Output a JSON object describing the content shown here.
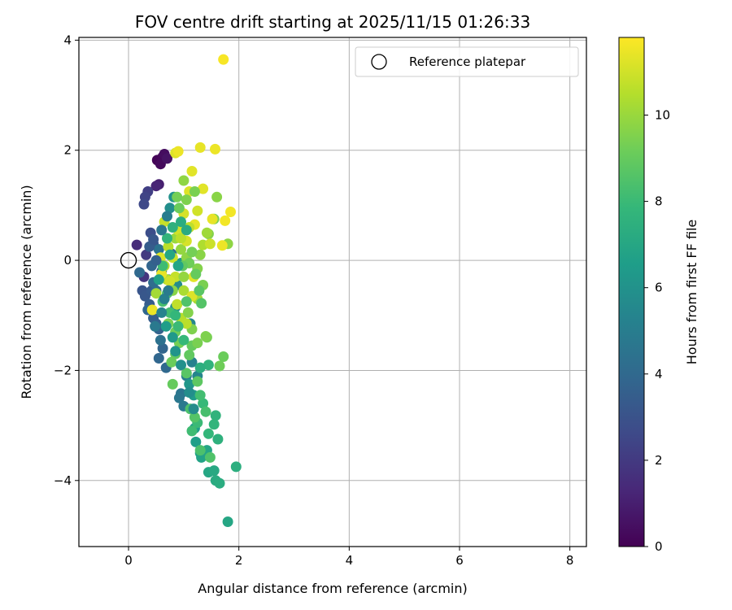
{
  "chart_data": {
    "type": "scatter",
    "title": "FOV centre drift starting at 2025/11/15 01:26:33",
    "xlabel": "Angular distance from reference (arcmin)",
    "ylabel": "Rotation from reference (arcmin)",
    "xlim": [
      -0.9,
      8.3
    ],
    "ylim": [
      -5.2,
      4.05
    ],
    "xticks": [
      0,
      2,
      4,
      6,
      8
    ],
    "xtick_labels": [
      "0",
      "2",
      "4",
      "6",
      "8"
    ],
    "yticks": [
      -4,
      -2,
      0,
      2,
      4
    ],
    "ytick_labels": [
      "−4",
      "−2",
      "0",
      "2",
      "4"
    ],
    "grid": true,
    "legend": {
      "label": "Reference platepar",
      "placement": "top-right"
    },
    "colorbar": {
      "label": "Hours from first FF file",
      "colormap": "viridis",
      "range": [
        0,
        11.8
      ],
      "ticks": [
        0,
        2,
        4,
        6,
        8,
        10
      ],
      "tick_labels": [
        "0",
        "2",
        "4",
        "6",
        "8",
        "10"
      ]
    },
    "reference": {
      "x": 0,
      "y": 0
    },
    "points": [
      [
        0.52,
        1.82,
        0.1
      ],
      [
        0.62,
        1.88,
        0.2
      ],
      [
        0.58,
        1.75,
        0.3
      ],
      [
        0.65,
        1.93,
        0.4
      ],
      [
        0.7,
        1.85,
        0.6
      ],
      [
        0.55,
        1.38,
        1.0
      ],
      [
        0.5,
        1.35,
        1.2
      ],
      [
        0.15,
        0.28,
        1.5
      ],
      [
        0.28,
        -0.3,
        1.8
      ],
      [
        0.32,
        0.1,
        2.0
      ],
      [
        0.35,
        1.25,
        2.2
      ],
      [
        0.3,
        1.15,
        2.4
      ],
      [
        0.28,
        1.02,
        2.6
      ],
      [
        0.4,
        0.5,
        2.8
      ],
      [
        0.45,
        0.3,
        3.0
      ],
      [
        0.25,
        -0.55,
        3.1
      ],
      [
        0.3,
        -0.65,
        3.2
      ],
      [
        0.42,
        -0.55,
        3.3
      ],
      [
        0.38,
        -0.8,
        3.4
      ],
      [
        0.45,
        -1.05,
        3.5
      ],
      [
        0.5,
        -1.15,
        3.6
      ],
      [
        0.55,
        -1.25,
        3.7
      ],
      [
        0.62,
        -1.6,
        3.8
      ],
      [
        0.55,
        -1.78,
        3.9
      ],
      [
        0.68,
        -1.95,
        4.0
      ],
      [
        0.5,
        -0.55,
        4.1
      ],
      [
        0.6,
        -0.2,
        4.2
      ],
      [
        0.72,
        -0.35,
        4.3
      ],
      [
        0.78,
        0.12,
        4.4
      ],
      [
        0.55,
        0.2,
        4.5
      ],
      [
        0.2,
        -0.22,
        4.0
      ],
      [
        0.35,
        -0.9,
        3.9
      ],
      [
        0.45,
        -0.4,
        4.2
      ],
      [
        0.95,
        -2.42,
        4.6
      ],
      [
        0.92,
        -2.5,
        4.7
      ],
      [
        1.0,
        -2.65,
        4.8
      ],
      [
        1.05,
        -2.1,
        5.0
      ],
      [
        1.15,
        -1.85,
        5.2
      ],
      [
        1.25,
        -2.1,
        5.4
      ],
      [
        1.12,
        -1.15,
        5.5
      ],
      [
        0.85,
        -0.85,
        5.6
      ],
      [
        0.88,
        -0.45,
        5.7
      ],
      [
        0.75,
        0.95,
        5.8
      ],
      [
        0.82,
        1.15,
        6.0
      ],
      [
        0.95,
        -0.05,
        6.1
      ],
      [
        1.1,
        -2.25,
        6.2
      ],
      [
        1.18,
        -2.45,
        6.4
      ],
      [
        1.2,
        -3.05,
        6.5
      ],
      [
        1.22,
        -3.3,
        6.6
      ],
      [
        1.3,
        -3.5,
        6.7
      ],
      [
        1.32,
        -3.58,
        6.8
      ],
      [
        1.42,
        -3.45,
        6.9
      ],
      [
        1.45,
        -3.85,
        7.0
      ],
      [
        1.55,
        -3.82,
        7.1
      ],
      [
        1.58,
        -4.0,
        7.2
      ],
      [
        1.65,
        -4.05,
        7.3
      ],
      [
        1.8,
        -4.75,
        7.0
      ],
      [
        1.95,
        -3.75,
        7.4
      ],
      [
        1.62,
        -3.25,
        7.5
      ],
      [
        1.58,
        -2.82,
        7.6
      ],
      [
        1.55,
        -2.98,
        7.7
      ],
      [
        1.45,
        -3.15,
        7.8
      ],
      [
        1.35,
        -2.6,
        7.9
      ],
      [
        1.25,
        -2.95,
        8.0
      ],
      [
        1.15,
        -3.1,
        8.1
      ],
      [
        1.3,
        -2.45,
        8.2
      ],
      [
        1.4,
        -2.75,
        8.3
      ],
      [
        1.3,
        -3.45,
        8.4
      ],
      [
        1.48,
        -3.58,
        8.5
      ],
      [
        1.12,
        -2.7,
        8.4
      ],
      [
        1.2,
        -2.85,
        8.6
      ],
      [
        1.05,
        -2.05,
        8.7
      ],
      [
        1.25,
        -2.2,
        8.8
      ],
      [
        1.1,
        -1.72,
        8.9
      ],
      [
        1.15,
        -1.55,
        9.0
      ],
      [
        0.85,
        -1.7,
        8.9
      ],
      [
        0.8,
        -2.25,
        9.0
      ],
      [
        0.78,
        -1.85,
        9.1
      ],
      [
        0.85,
        -1.3,
        9.2
      ],
      [
        0.92,
        -1.5,
        9.3
      ],
      [
        1.65,
        -1.92,
        9.2
      ],
      [
        1.72,
        -1.75,
        9.1
      ],
      [
        1.42,
        -1.4,
        9.3
      ],
      [
        1.25,
        -1.5,
        9.4
      ],
      [
        1.15,
        -1.25,
        9.5
      ],
      [
        1.35,
        -0.45,
        9.4
      ],
      [
        1.25,
        -0.15,
        9.6
      ],
      [
        1.3,
        0.1,
        9.7
      ],
      [
        1.05,
        0.05,
        9.8
      ],
      [
        0.95,
        0.2,
        9.9
      ],
      [
        0.85,
        0.4,
        10.0
      ],
      [
        1.45,
        0.48,
        9.6
      ],
      [
        1.55,
        0.75,
        9.5
      ],
      [
        1.8,
        0.3,
        9.8
      ],
      [
        1.6,
        1.15,
        9.7
      ],
      [
        1.42,
        0.5,
        10.1
      ],
      [
        1.25,
        -0.7,
        10.2
      ],
      [
        1.0,
        -0.55,
        10.3
      ],
      [
        0.7,
        -0.35,
        10.4
      ],
      [
        0.65,
        -0.1,
        10.5
      ],
      [
        0.72,
        0.25,
        10.6
      ],
      [
        0.88,
        -0.8,
        10.7
      ],
      [
        0.95,
        -1.05,
        10.5
      ],
      [
        1.05,
        -1.15,
        10.6
      ],
      [
        0.85,
        -0.3,
        10.8
      ],
      [
        0.8,
        0.05,
        10.9
      ],
      [
        0.9,
        0.55,
        11.0
      ],
      [
        1.0,
        0.85,
        11.1
      ],
      [
        1.1,
        1.25,
        11.2
      ],
      [
        1.15,
        1.62,
        11.3
      ],
      [
        1.3,
        2.05,
        11.4
      ],
      [
        1.57,
        2.02,
        11.5
      ],
      [
        1.72,
        3.65,
        11.7
      ],
      [
        1.35,
        1.3,
        11.3
      ],
      [
        1.2,
        0.65,
        11.4
      ],
      [
        0.85,
        1.95,
        11.2
      ],
      [
        0.9,
        1.98,
        11.5
      ],
      [
        1.25,
        0.9,
        11.0
      ],
      [
        1.85,
        0.88,
        11.6
      ],
      [
        1.7,
        0.27,
        11.5
      ],
      [
        1.52,
        0.75,
        11.4
      ],
      [
        1.75,
        0.72,
        11.6
      ],
      [
        1.05,
        0.35,
        11.1
      ],
      [
        1.15,
        -0.65,
        11.2
      ],
      [
        1.18,
        -0.3,
        11.3
      ],
      [
        0.6,
        -0.25,
        11.4
      ],
      [
        0.75,
        -0.38,
        11.0
      ],
      [
        0.43,
        -0.9,
        11.5
      ],
      [
        0.58,
        0.05,
        11.2
      ],
      [
        0.5,
        -0.6,
        10.2
      ],
      [
        0.65,
        0.7,
        10.8
      ],
      [
        0.95,
        0.4,
        10.6
      ],
      [
        1.1,
        0.6,
        10.7
      ],
      [
        1.35,
        0.28,
        10.4
      ],
      [
        1.48,
        0.3,
        10.9
      ],
      [
        1.0,
        1.45,
        9.8
      ],
      [
        1.05,
        1.1,
        9.5
      ],
      [
        0.88,
        1.15,
        9.3
      ],
      [
        1.2,
        1.25,
        9.4
      ],
      [
        0.92,
        0.95,
        9.1
      ],
      [
        1.1,
        -0.05,
        9.2
      ],
      [
        1.22,
        -0.25,
        9.0
      ],
      [
        1.4,
        -1.38,
        9.5
      ],
      [
        1.08,
        -0.95,
        9.6
      ],
      [
        0.72,
        -1.15,
        9.4
      ],
      [
        0.8,
        -0.55,
        9.7
      ],
      [
        1.0,
        -0.3,
        9.9
      ],
      [
        1.15,
        0.15,
        9.3
      ],
      [
        0.98,
        -0.1,
        8.9
      ],
      [
        1.28,
        -0.55,
        8.7
      ],
      [
        1.32,
        -0.78,
        8.6
      ],
      [
        1.05,
        -0.75,
        8.5
      ],
      [
        0.7,
        -0.6,
        8.4
      ],
      [
        0.62,
        -0.75,
        8.3
      ],
      [
        0.75,
        -0.95,
        8.2
      ],
      [
        0.9,
        -1.2,
        8.0
      ],
      [
        1.0,
        -1.45,
        7.9
      ],
      [
        0.85,
        -1.0,
        7.8
      ],
      [
        1.45,
        -1.9,
        7.6
      ],
      [
        1.3,
        -1.95,
        7.4
      ],
      [
        0.62,
        -0.1,
        8.1
      ],
      [
        0.7,
        0.4,
        7.7
      ],
      [
        0.8,
        0.6,
        7.5
      ],
      [
        0.95,
        0.7,
        7.3
      ],
      [
        1.05,
        0.55,
        7.2
      ],
      [
        0.75,
        0.1,
        7.0
      ],
      [
        0.9,
        -0.1,
        6.9
      ],
      [
        0.55,
        -0.35,
        6.7
      ],
      [
        0.68,
        -1.2,
        6.5
      ],
      [
        0.8,
        -1.4,
        6.3
      ],
      [
        0.85,
        -1.65,
        6.1
      ],
      [
        0.95,
        -1.9,
        5.9
      ],
      [
        1.1,
        -2.4,
        5.8
      ],
      [
        1.18,
        -2.7,
        5.7
      ],
      [
        0.6,
        -0.95,
        5.3
      ],
      [
        0.65,
        -0.7,
        5.1
      ],
      [
        0.72,
        -0.55,
        4.9
      ],
      [
        0.48,
        -1.2,
        4.8
      ],
      [
        0.58,
        -1.45,
        4.4
      ],
      [
        0.42,
        -0.1,
        3.8
      ],
      [
        0.5,
        0.0,
        3.6
      ],
      [
        0.38,
        0.25,
        3.4
      ],
      [
        0.45,
        0.38,
        3.2
      ],
      [
        0.6,
        0.55,
        4.7
      ],
      [
        0.7,
        0.8,
        5.0
      ]
    ]
  }
}
